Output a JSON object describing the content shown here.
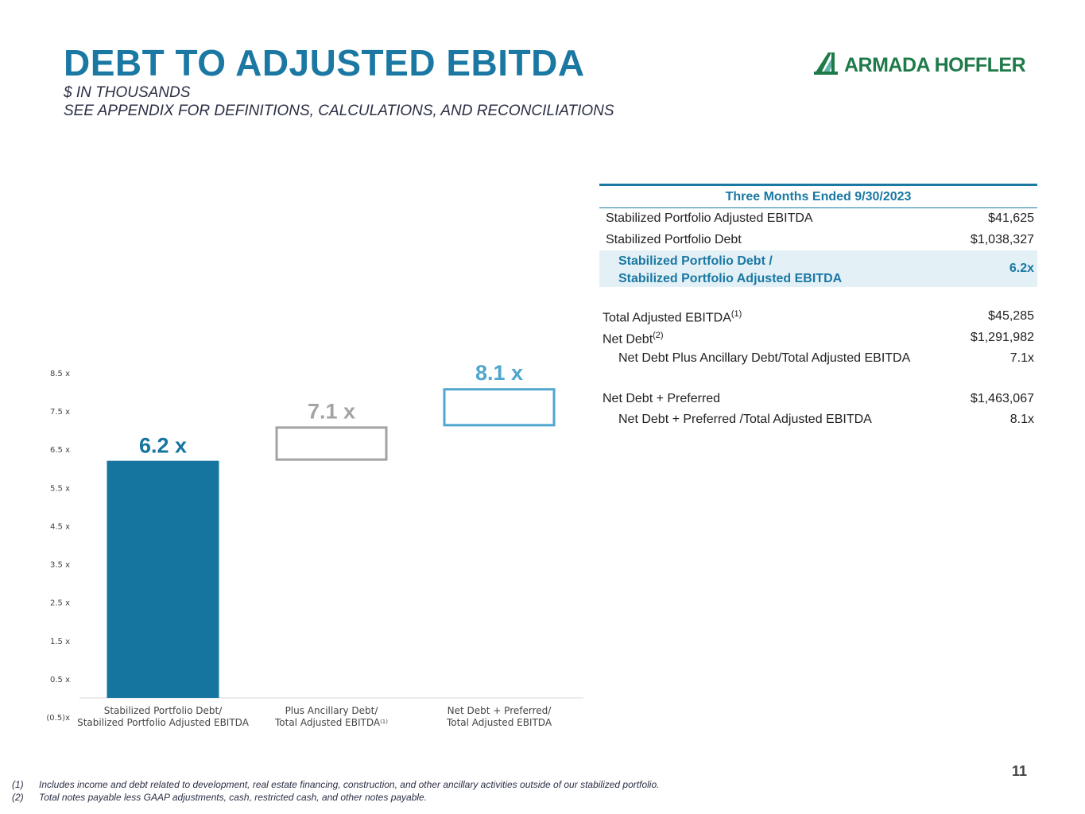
{
  "header": {
    "title": "DEBT TO ADJUSTED EBITDA",
    "subtitle_1": "$ IN THOUSANDS",
    "subtitle_2": "SEE APPENDIX FOR DEFINITIONS, CALCULATIONS, AND RECONCILIATIONS",
    "logo_text": "ARMADA HOFFLER"
  },
  "table": {
    "heading": "Three Months Ended 9/30/2023",
    "rows": [
      {
        "label": "Stabilized Portfolio Adjusted EBITDA",
        "value": "$41,625"
      },
      {
        "label": "Stabilized Portfolio Debt",
        "value": "$1,038,327"
      }
    ],
    "highlight": {
      "label_1": "Stabilized Portfolio Debt /",
      "label_2": "Stabilized Portfolio Adjusted EBITDA",
      "value": "6.2x"
    },
    "group2": [
      {
        "label": "Total Adjusted EBITDA",
        "sup": "(1)",
        "value": "$45,285"
      },
      {
        "label": "Net Debt",
        "sup": "(2)",
        "value": "$1,291,982"
      },
      {
        "label": "Net Debt Plus Ancillary Debt/Total Adjusted EBITDA",
        "sup": "",
        "value": "7.1x"
      }
    ],
    "group3": [
      {
        "label": "Net Debt + Preferred",
        "value": "$1,463,067"
      },
      {
        "label": "Net Debt + Preferred /Total Adjusted EBITDA",
        "value": "8.1x"
      }
    ]
  },
  "chart_data": {
    "type": "bar",
    "subtype": "waterfall",
    "categories": [
      "Stabilized Portfolio Debt/ Stabilized Portfolio Adjusted EBITDA",
      "Plus Ancillary Debt/ Total Adjusted EBITDA(1)",
      "Net Debt + Preferred/ Total Adjusted EBITDA"
    ],
    "category_lines": [
      [
        "Stabilized Portfolio Debt/",
        "Stabilized Portfolio Adjusted EBITDA"
      ],
      [
        "Plus Ancillary Debt/",
        "Total Adjusted EBITDA"
      ],
      [
        "Net Debt + Preferred/",
        "Total Adjusted EBITDA"
      ]
    ],
    "category_sup": [
      "",
      "(1)",
      ""
    ],
    "values": [
      6.2,
      7.1,
      8.1
    ],
    "bar_base": [
      0,
      6.2,
      7.1
    ],
    "data_labels": [
      "6.2 x",
      "7.1 x",
      "8.1 x"
    ],
    "bar_colors": [
      "#15759f",
      "#a3a3a3",
      "#4fa6cf"
    ],
    "bar_style": [
      "filled",
      "outline",
      "outline"
    ],
    "y_ticks": [
      -0.5,
      0.5,
      1.5,
      2.5,
      3.5,
      4.5,
      5.5,
      6.5,
      7.5,
      8.5
    ],
    "y_tick_labels": [
      "(0.5)x",
      "0.5 x",
      "1.5 x",
      "2.5 x",
      "3.5 x",
      "4.5 x",
      "5.5 x",
      "6.5 x",
      "7.5 x",
      "8.5 x"
    ],
    "ylim": [
      -0.5,
      8.5
    ],
    "grid": false
  },
  "footnotes": [
    {
      "num": "(1)",
      "text": "Includes income and debt related to development, real estate financing, construction, and other ancillary activities outside  of our stabilized portfolio."
    },
    {
      "num": "(2)",
      "text": "Total notes payable less GAAP adjustments, cash, restricted cash, and other notes payable."
    }
  ],
  "page_number": "11",
  "colors": {
    "brand_blue": "#1a78a3",
    "brand_green": "#1f7a4a"
  }
}
